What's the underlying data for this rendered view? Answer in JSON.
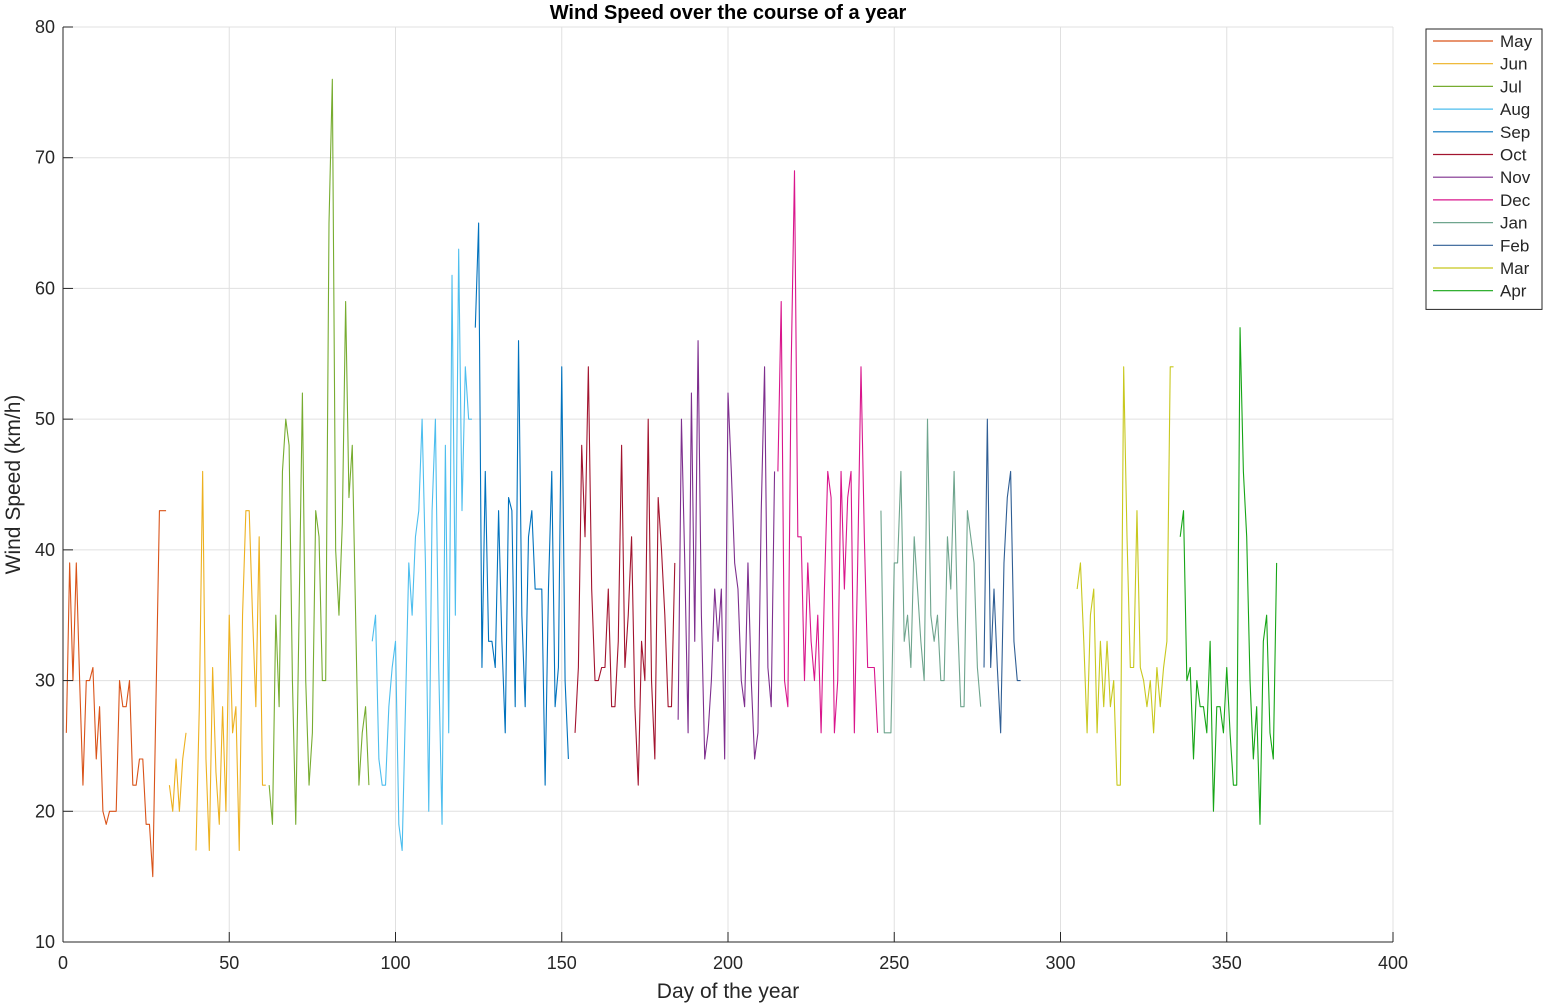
{
  "chart_data": {
    "type": "line",
    "title": "Wind Speed over the course of a year",
    "xlabel": "Day of the year",
    "ylabel": "Wind Speed (km/h)",
    "xlim": [
      0,
      400
    ],
    "ylim": [
      10,
      80
    ],
    "xticks": [
      0,
      50,
      100,
      150,
      200,
      250,
      300,
      350,
      400
    ],
    "yticks": [
      10,
      20,
      30,
      40,
      50,
      60,
      70,
      80
    ],
    "grid": true,
    "legend_position": "top-right outside",
    "series": [
      {
        "name": "May",
        "color": "#D95319",
        "x": [
          1,
          2,
          3,
          4,
          5,
          6,
          7,
          8,
          9,
          10,
          11,
          12,
          13,
          14,
          15,
          16,
          17,
          18,
          19,
          20,
          21,
          22,
          23,
          24,
          25,
          26,
          27,
          28,
          29,
          30,
          31
        ],
        "y": [
          26,
          39,
          30,
          39,
          30,
          22,
          30,
          30,
          31,
          24,
          28,
          20,
          19,
          20,
          20,
          20,
          30,
          28,
          28,
          30,
          22,
          22,
          24,
          24,
          19,
          19,
          15,
          29,
          43,
          43,
          43
        ]
      },
      {
        "name": "Jun",
        "color": "#EDB120",
        "x": [
          32,
          33,
          34,
          35,
          36,
          37,
          38,
          39,
          40,
          41,
          42,
          43,
          44,
          45,
          46,
          47,
          48,
          49,
          50,
          51,
          52,
          53,
          54,
          55,
          56,
          57,
          58,
          59,
          60,
          61
        ],
        "y": [
          22,
          20,
          24,
          20,
          24,
          26,
          null,
          null,
          17,
          28,
          46,
          24,
          17,
          31,
          23,
          19,
          28,
          20,
          35,
          26,
          28,
          17,
          35,
          43,
          43,
          35,
          28,
          41,
          22,
          22
        ]
      },
      {
        "name": "Jul",
        "color": "#77AC30",
        "x": [
          62,
          63,
          64,
          65,
          66,
          67,
          68,
          69,
          70,
          71,
          72,
          73,
          74,
          75,
          76,
          77,
          78,
          79,
          80,
          81,
          82,
          83,
          84,
          85,
          86,
          87,
          88,
          89,
          90,
          91,
          92
        ],
        "y": [
          22,
          19,
          35,
          28,
          46,
          50,
          48,
          30,
          19,
          35,
          52,
          30,
          22,
          26,
          43,
          41,
          30,
          30,
          65,
          76,
          40,
          35,
          42,
          59,
          44,
          48,
          35,
          22,
          26,
          28,
          22
        ]
      },
      {
        "name": "Aug",
        "color": "#4DBEEE",
        "x": [
          93,
          94,
          95,
          96,
          97,
          98,
          99,
          100,
          101,
          102,
          103,
          104,
          105,
          106,
          107,
          108,
          109,
          110,
          111,
          112,
          113,
          114,
          115,
          116,
          117,
          118,
          119,
          120,
          121,
          122,
          123
        ],
        "y": [
          33,
          35,
          24,
          22,
          22,
          28,
          31,
          33,
          19,
          17,
          28,
          39,
          35,
          41,
          43,
          50,
          39,
          20,
          43,
          50,
          31,
          19,
          48,
          26,
          61,
          35,
          63,
          43,
          54,
          50,
          50
        ]
      },
      {
        "name": "Sep",
        "color": "#0072BD",
        "x": [
          124,
          125,
          126,
          127,
          128,
          129,
          130,
          131,
          132,
          133,
          134,
          135,
          136,
          137,
          138,
          139,
          140,
          141,
          142,
          143,
          144,
          145,
          146,
          147,
          148,
          149,
          150,
          151,
          152,
          153
        ],
        "y": [
          57,
          65,
          31,
          46,
          33,
          33,
          31,
          43,
          33,
          26,
          44,
          43,
          28,
          56,
          35,
          28,
          41,
          43,
          37,
          37,
          37,
          22,
          37,
          46,
          28,
          31,
          54,
          30,
          24,
          null
        ]
      },
      {
        "name": "Oct",
        "color": "#A2142F",
        "x": [
          154,
          155,
          156,
          157,
          158,
          159,
          160,
          161,
          162,
          163,
          164,
          165,
          166,
          167,
          168,
          169,
          170,
          171,
          172,
          173,
          174,
          175,
          176,
          177,
          178,
          179,
          180,
          181,
          182,
          183,
          184
        ],
        "y": [
          26,
          31,
          48,
          41,
          54,
          37,
          30,
          30,
          31,
          31,
          37,
          28,
          28,
          33,
          48,
          31,
          35,
          41,
          28,
          22,
          33,
          30,
          50,
          30,
          24,
          44,
          40,
          35,
          28,
          28,
          39
        ]
      },
      {
        "name": "Nov",
        "color": "#7E2F8E",
        "x": [
          185,
          186,
          187,
          188,
          189,
          190,
          191,
          192,
          193,
          194,
          195,
          196,
          197,
          198,
          199,
          200,
          201,
          202,
          203,
          204,
          205,
          206,
          207,
          208,
          209,
          210,
          211,
          212,
          213,
          214
        ],
        "y": [
          27,
          50,
          39,
          26,
          52,
          33,
          56,
          35,
          24,
          26,
          30,
          37,
          33,
          37,
          24,
          52,
          46,
          39,
          37,
          30,
          28,
          39,
          30,
          24,
          26,
          43,
          54,
          31,
          28,
          46
        ]
      },
      {
        "name": "Dec",
        "color": "#D9168C",
        "x": [
          215,
          216,
          217,
          218,
          219,
          220,
          221,
          222,
          223,
          224,
          225,
          226,
          227,
          228,
          229,
          230,
          231,
          232,
          233,
          234,
          235,
          236,
          237,
          238,
          239,
          240,
          241,
          242,
          243,
          244,
          245
        ],
        "y": [
          46,
          59,
          30,
          28,
          54,
          69,
          41,
          41,
          30,
          39,
          33,
          30,
          35,
          26,
          37,
          46,
          44,
          26,
          30,
          46,
          37,
          44,
          46,
          26,
          39,
          54,
          41,
          31,
          31,
          31,
          26
        ]
      },
      {
        "name": "Jan",
        "color": "#6FA58E",
        "x": [
          246,
          247,
          248,
          249,
          250,
          251,
          252,
          253,
          254,
          255,
          256,
          257,
          258,
          259,
          260,
          261,
          262,
          263,
          264,
          265,
          266,
          267,
          268,
          269,
          270,
          271,
          272,
          273,
          274,
          275,
          276
        ],
        "y": [
          43,
          26,
          26,
          26,
          39,
          39,
          46,
          33,
          35,
          31,
          41,
          37,
          33,
          30,
          50,
          35,
          33,
          35,
          30,
          30,
          41,
          37,
          46,
          35,
          28,
          28,
          43,
          41,
          39,
          31,
          28
        ]
      },
      {
        "name": "Feb",
        "color": "#2F5E94",
        "x": [
          277,
          278,
          279,
          280,
          281,
          282,
          283,
          284,
          285,
          286,
          287,
          288
        ],
        "y": [
          31,
          50,
          31,
          37,
          31,
          26,
          39,
          44,
          46,
          33,
          30,
          30
        ]
      },
      {
        "name": "Mar",
        "color": "#C8C81E",
        "x": [
          305,
          306,
          307,
          308,
          309,
          310,
          311,
          312,
          313,
          314,
          315,
          316,
          317,
          318,
          319,
          320,
          321,
          322,
          323,
          324,
          325,
          326,
          327,
          328,
          329,
          330,
          331,
          332,
          333,
          334,
          335
        ],
        "y": [
          37,
          39,
          33,
          26,
          35,
          37,
          26,
          33,
          28,
          33,
          28,
          30,
          22,
          22,
          54,
          41,
          31,
          31,
          43,
          31,
          30,
          28,
          30,
          26,
          31,
          28,
          31,
          33,
          54,
          54,
          null
        ]
      },
      {
        "name": "Apr",
        "color": "#16A516",
        "x": [
          336,
          337,
          338,
          339,
          340,
          341,
          342,
          343,
          344,
          345,
          346,
          347,
          348,
          349,
          350,
          351,
          352,
          353,
          354,
          355,
          356,
          357,
          358,
          359,
          360,
          361,
          362,
          363,
          364,
          365
        ],
        "y": [
          41,
          43,
          30,
          31,
          24,
          30,
          28,
          28,
          26,
          33,
          20,
          28,
          28,
          26,
          31,
          26,
          22,
          22,
          57,
          46,
          41,
          30,
          24,
          28,
          19,
          33,
          35,
          26,
          24,
          39
        ]
      }
    ]
  }
}
